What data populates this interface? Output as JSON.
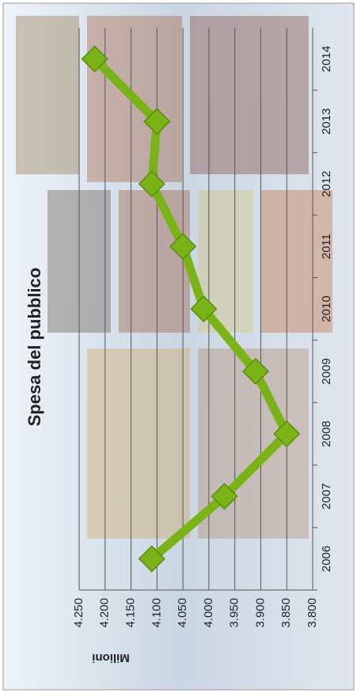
{
  "chart_data": {
    "type": "line",
    "title": "Spesa del pubblico",
    "y_label": "Milioni",
    "categories": [
      "2006",
      "2007",
      "2008",
      "2009",
      "2010",
      "2011",
      "2012",
      "2013",
      "2014"
    ],
    "values": [
      4.11,
      3.97,
      3.85,
      3.91,
      4.01,
      4.05,
      4.11,
      4.1,
      4.22
    ],
    "color": "#7ab317",
    "ylim": [
      3.8,
      4.25
    ],
    "yticks": [
      {
        "value": 3.8,
        "label": "3.800"
      },
      {
        "value": 3.85,
        "label": "3.850"
      },
      {
        "value": 3.9,
        "label": "3.900"
      },
      {
        "value": 3.95,
        "label": "3.950"
      },
      {
        "value": 4.0,
        "label": "4.000"
      },
      {
        "value": 4.05,
        "label": "4.050"
      },
      {
        "value": 4.1,
        "label": "4.100"
      },
      {
        "value": 4.15,
        "label": "4.150"
      },
      {
        "value": 4.2,
        "label": "4.200"
      },
      {
        "value": 4.25,
        "label": "4.250"
      }
    ],
    "grid": true
  }
}
